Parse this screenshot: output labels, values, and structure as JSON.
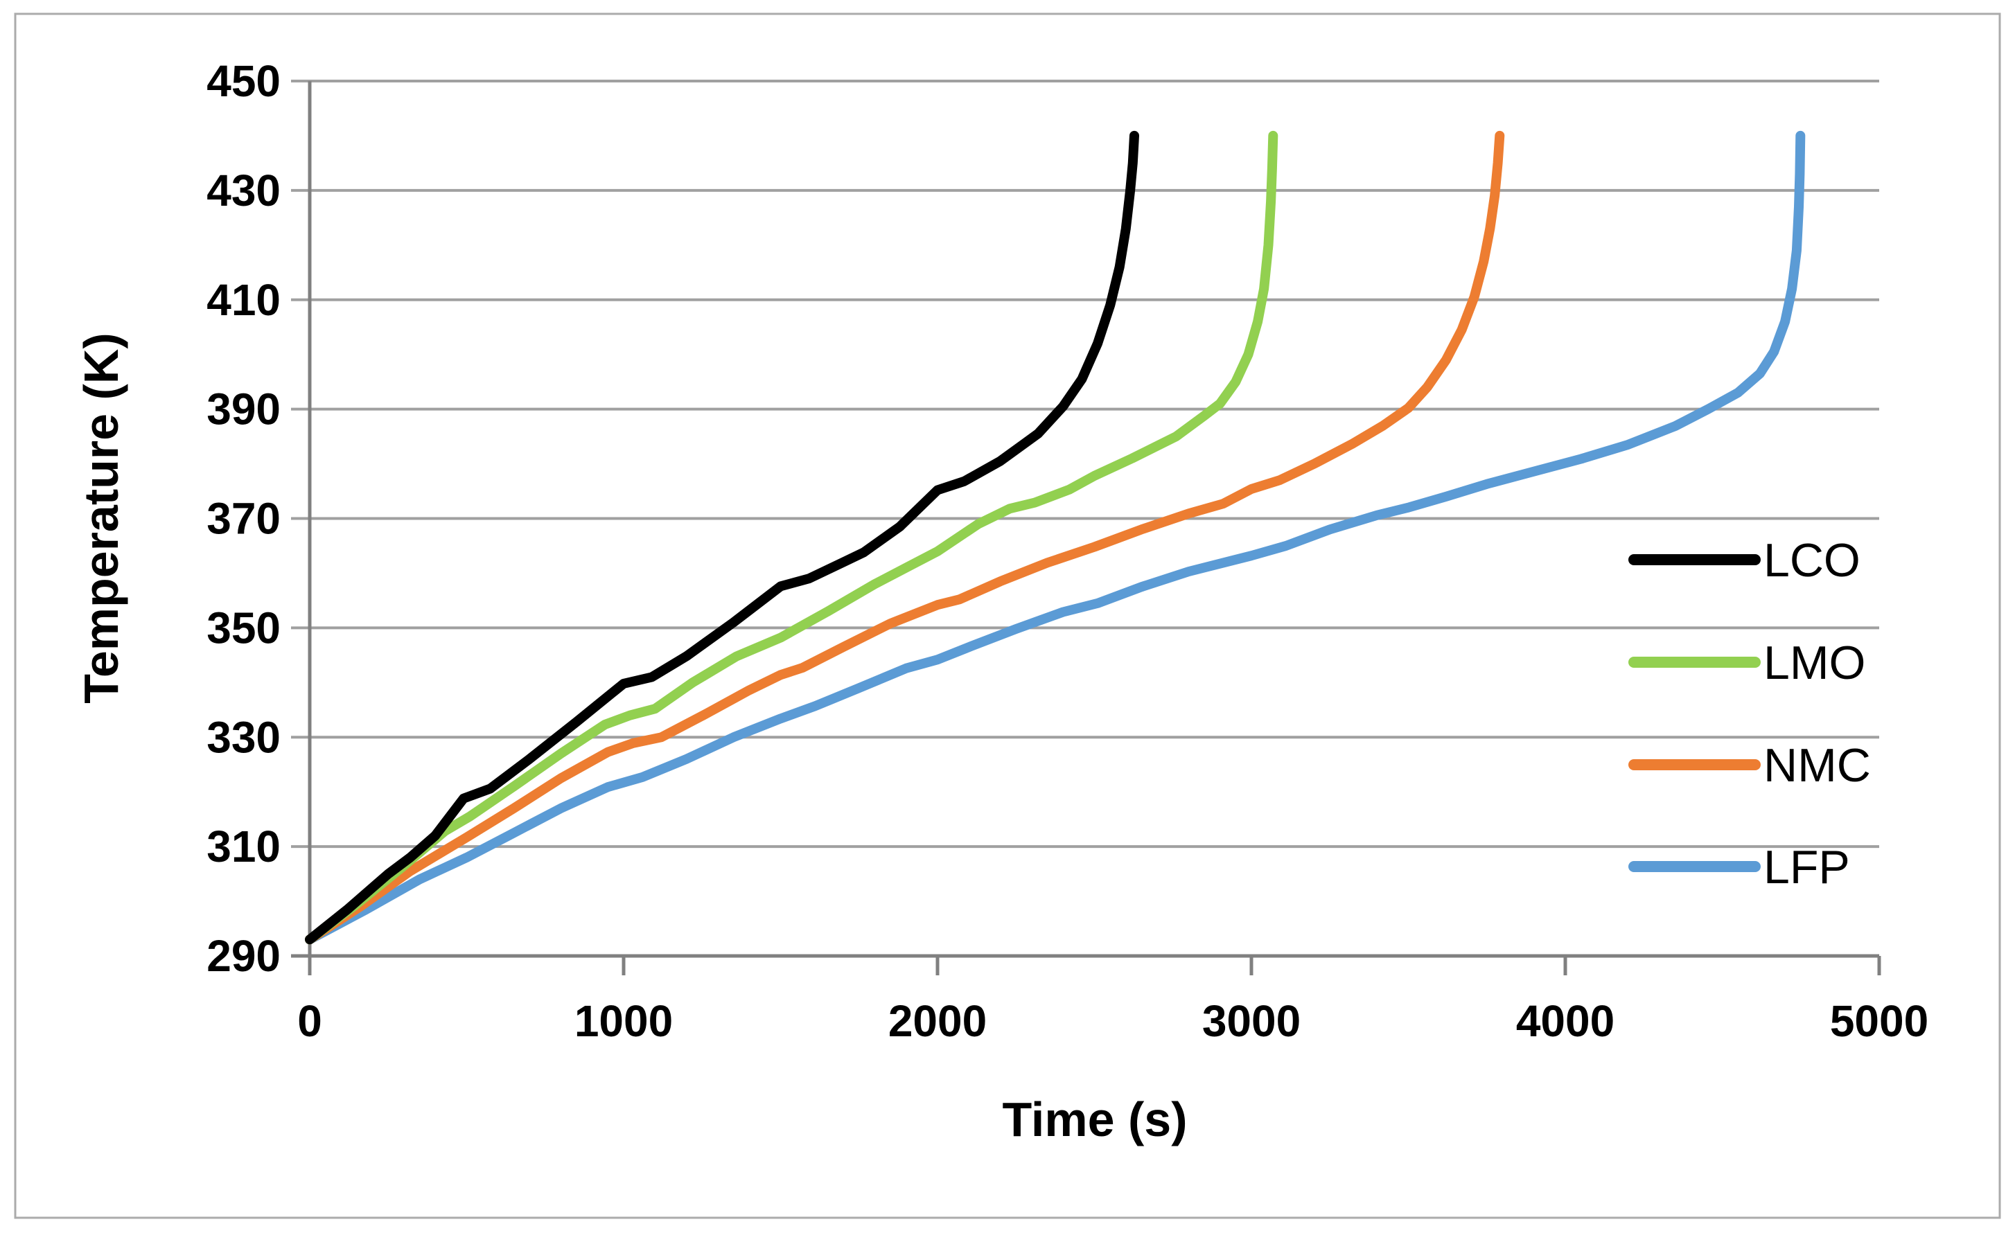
{
  "chart_data": {
    "type": "line",
    "title": "",
    "xlabel": "Time (s)",
    "ylabel": "Temperature (K)",
    "xlim": [
      0,
      5000
    ],
    "ylim": [
      290,
      450
    ],
    "x_ticks": [
      0,
      1000,
      2000,
      3000,
      4000,
      5000
    ],
    "y_ticks": [
      290,
      310,
      330,
      350,
      370,
      390,
      410,
      430,
      450
    ],
    "grid": "horizontal",
    "legend_position": "right",
    "colors": {
      "grid": "#A0A0A0",
      "axis": "#808080",
      "border": "#ABABAB",
      "text": "#000000"
    },
    "series": [
      {
        "name": "LCO",
        "color": "#000000",
        "points": [
          [
            0,
            293
          ],
          [
            120,
            298.5
          ],
          [
            250,
            305
          ],
          [
            320,
            308
          ],
          [
            400,
            312
          ],
          [
            490,
            318.8
          ],
          [
            575,
            320.6
          ],
          [
            700,
            326
          ],
          [
            850,
            332.8
          ],
          [
            1000,
            339.8
          ],
          [
            1090,
            341
          ],
          [
            1200,
            344.8
          ],
          [
            1350,
            351
          ],
          [
            1500,
            357.6
          ],
          [
            1590,
            359
          ],
          [
            1700,
            362
          ],
          [
            1765,
            363.8
          ],
          [
            1880,
            368.5
          ],
          [
            2000,
            375.2
          ],
          [
            2085,
            376.8
          ],
          [
            2200,
            380.5
          ],
          [
            2320,
            385.5
          ],
          [
            2400,
            390.5
          ],
          [
            2460,
            395.5
          ],
          [
            2510,
            402
          ],
          [
            2550,
            409
          ],
          [
            2580,
            416
          ],
          [
            2600,
            423
          ],
          [
            2614,
            430
          ],
          [
            2622,
            435
          ],
          [
            2627,
            440
          ]
        ]
      },
      {
        "name": "LMO",
        "color": "#92D050",
        "points": [
          [
            0,
            293
          ],
          [
            150,
            299.5
          ],
          [
            300,
            306.5
          ],
          [
            430,
            312.8
          ],
          [
            510,
            315.5
          ],
          [
            650,
            321
          ],
          [
            800,
            327
          ],
          [
            940,
            332.3
          ],
          [
            1020,
            334
          ],
          [
            1100,
            335.2
          ],
          [
            1220,
            340
          ],
          [
            1360,
            344.8
          ],
          [
            1500,
            348.2
          ],
          [
            1650,
            353
          ],
          [
            1800,
            358
          ],
          [
            1910,
            361.3
          ],
          [
            2000,
            364
          ],
          [
            2130,
            369
          ],
          [
            2230,
            371.8
          ],
          [
            2310,
            372.9
          ],
          [
            2420,
            375.3
          ],
          [
            2500,
            377.8
          ],
          [
            2620,
            381
          ],
          [
            2760,
            385
          ],
          [
            2850,
            388.8
          ],
          [
            2900,
            391
          ],
          [
            2950,
            395
          ],
          [
            2990,
            400
          ],
          [
            3020,
            406
          ],
          [
            3040,
            412
          ],
          [
            3054,
            420
          ],
          [
            3062,
            428
          ],
          [
            3066,
            434
          ],
          [
            3069,
            440
          ]
        ]
      },
      {
        "name": "NMC",
        "color": "#ED7D31",
        "points": [
          [
            0,
            293
          ],
          [
            160,
            299
          ],
          [
            320,
            305.5
          ],
          [
            500,
            311.7
          ],
          [
            650,
            317
          ],
          [
            800,
            322.5
          ],
          [
            950,
            327.3
          ],
          [
            1030,
            328.9
          ],
          [
            1120,
            330
          ],
          [
            1260,
            334.2
          ],
          [
            1400,
            338.6
          ],
          [
            1500,
            341.4
          ],
          [
            1570,
            342.7
          ],
          [
            1700,
            346.5
          ],
          [
            1850,
            350.8
          ],
          [
            2000,
            354.2
          ],
          [
            2070,
            355.2
          ],
          [
            2200,
            358.5
          ],
          [
            2350,
            361.9
          ],
          [
            2500,
            364.8
          ],
          [
            2650,
            368
          ],
          [
            2800,
            370.9
          ],
          [
            2910,
            372.7
          ],
          [
            3000,
            375.4
          ],
          [
            3090,
            377
          ],
          [
            3200,
            380
          ],
          [
            3320,
            383.6
          ],
          [
            3420,
            387
          ],
          [
            3500,
            390.2
          ],
          [
            3560,
            394
          ],
          [
            3620,
            399
          ],
          [
            3670,
            404.5
          ],
          [
            3710,
            410.5
          ],
          [
            3740,
            417
          ],
          [
            3760,
            423
          ],
          [
            3775,
            429
          ],
          [
            3785,
            435
          ],
          [
            3791,
            440
          ]
        ]
      },
      {
        "name": "LFP",
        "color": "#5B9BD5",
        "points": [
          [
            0,
            293
          ],
          [
            180,
            298.5
          ],
          [
            350,
            304
          ],
          [
            500,
            308
          ],
          [
            650,
            312.5
          ],
          [
            800,
            317
          ],
          [
            950,
            320.9
          ],
          [
            1060,
            322.7
          ],
          [
            1200,
            326
          ],
          [
            1350,
            330
          ],
          [
            1500,
            333.4
          ],
          [
            1610,
            335.7
          ],
          [
            1750,
            339
          ],
          [
            1900,
            342.6
          ],
          [
            2000,
            344.2
          ],
          [
            2110,
            346.7
          ],
          [
            2250,
            349.8
          ],
          [
            2400,
            352.9
          ],
          [
            2510,
            354.5
          ],
          [
            2650,
            357.5
          ],
          [
            2800,
            360.3
          ],
          [
            3000,
            363.2
          ],
          [
            3110,
            365
          ],
          [
            3250,
            368
          ],
          [
            3400,
            370.6
          ],
          [
            3500,
            372
          ],
          [
            3620,
            374
          ],
          [
            3750,
            376.3
          ],
          [
            3900,
            378.6
          ],
          [
            4050,
            380.9
          ],
          [
            4200,
            383.5
          ],
          [
            4350,
            386.9
          ],
          [
            4455,
            390
          ],
          [
            4550,
            393
          ],
          [
            4620,
            396.5
          ],
          [
            4665,
            400.5
          ],
          [
            4700,
            406
          ],
          [
            4722,
            412
          ],
          [
            4737,
            419
          ],
          [
            4744,
            427
          ],
          [
            4747,
            433
          ],
          [
            4749,
            440
          ]
        ]
      }
    ]
  }
}
